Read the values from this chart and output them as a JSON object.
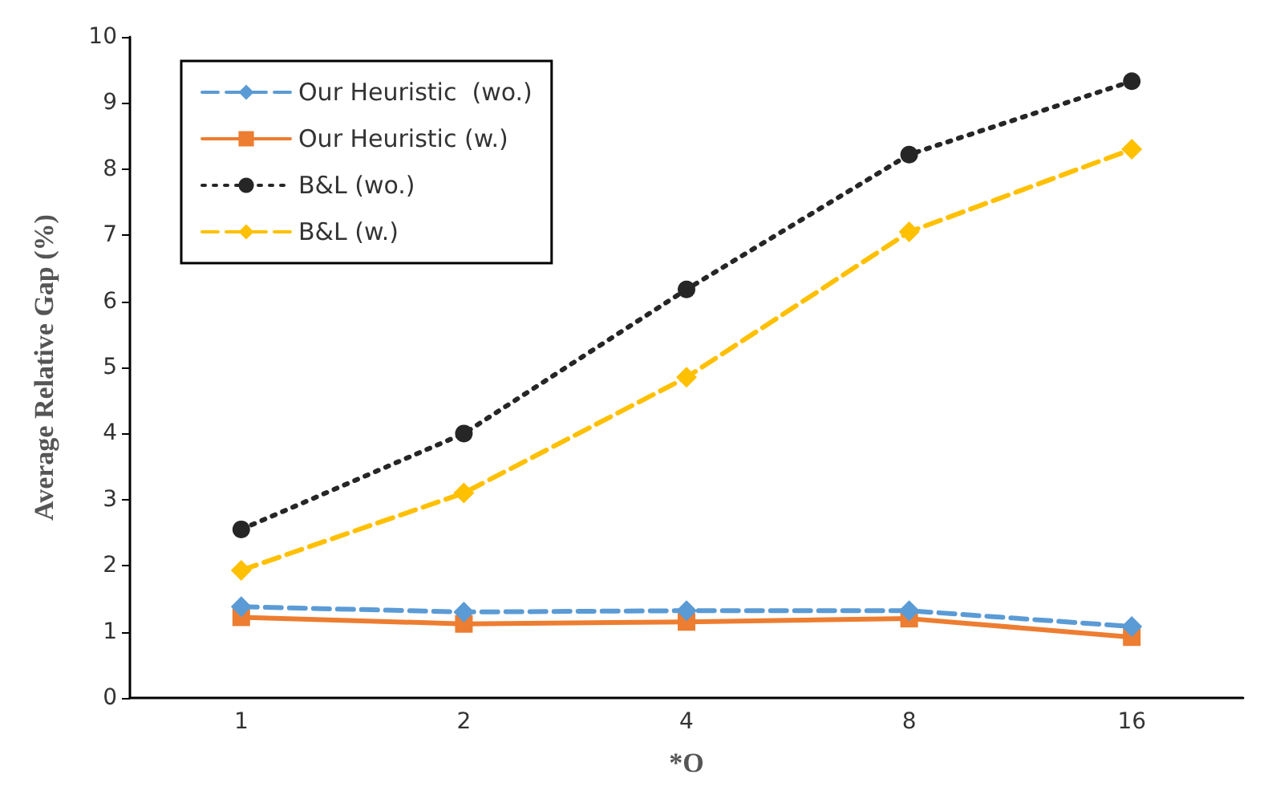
{
  "chart_data": {
    "type": "line",
    "xlabel": "*O",
    "ylabel": "Average Relative Gap (%)",
    "categories": [
      "1",
      "2",
      "4",
      "8",
      "16"
    ],
    "series": [
      {
        "name": "Our Heuristic  (wo.)",
        "color": "#5b9bd5",
        "marker": "diamond",
        "line_style": "dashed",
        "values": [
          1.38,
          1.3,
          1.32,
          1.32,
          1.08
        ]
      },
      {
        "name": "Our Heuristic (w.)",
        "color": "#ed7d31",
        "marker": "square",
        "line_style": "solid",
        "values": [
          1.22,
          1.12,
          1.15,
          1.2,
          0.92
        ]
      },
      {
        "name": "B&L (wo.)",
        "color": "#262626",
        "marker": "circle",
        "line_style": "dotted",
        "values": [
          2.55,
          4.0,
          6.18,
          8.22,
          9.33
        ]
      },
      {
        "name": "B&L (w.)",
        "color": "#ffc000",
        "marker": "diamond",
        "line_style": "dashed",
        "values": [
          1.93,
          3.1,
          4.85,
          7.05,
          8.3
        ]
      }
    ],
    "ylim": [
      0,
      10
    ],
    "yticks": [
      0,
      1,
      2,
      3,
      4,
      5,
      6,
      7,
      8,
      9,
      10
    ],
    "grid": false,
    "legend": "top left"
  }
}
